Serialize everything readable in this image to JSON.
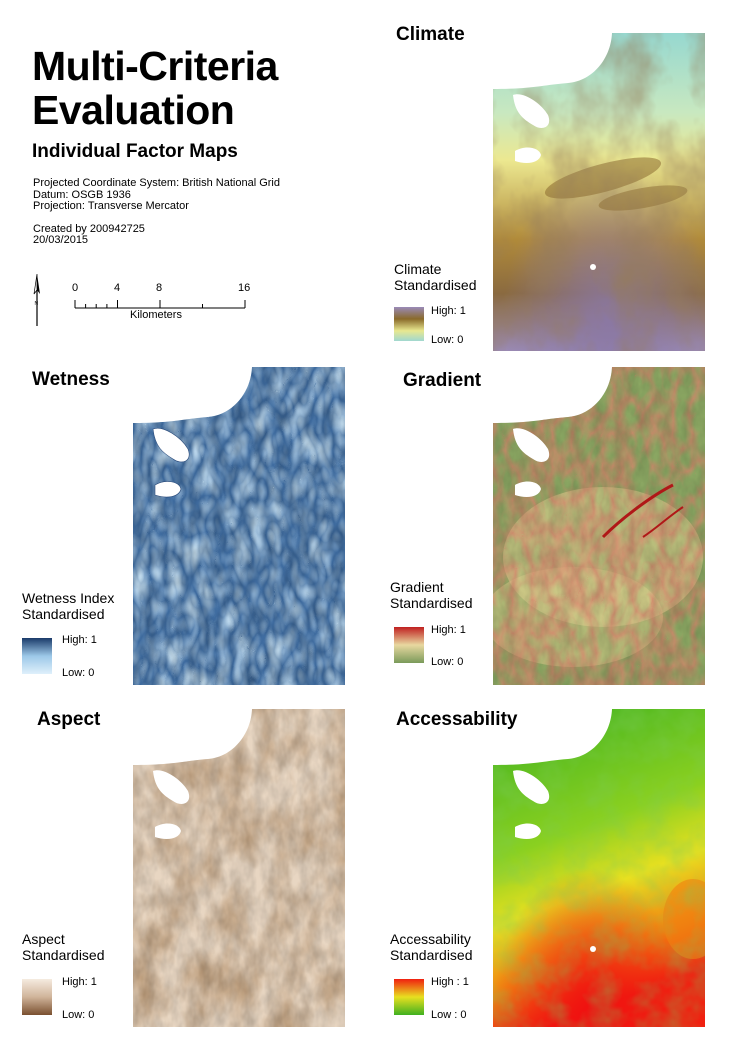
{
  "header": {
    "title_line1": "Multi-Criteria",
    "title_line2": "Evaluation",
    "subtitle": "Individual Factor Maps",
    "coord_system": "Projected Coordinate System: British National Grid",
    "datum": "Datum: OSGB 1936",
    "projection": "Projection: Transverse Mercator",
    "created_by": "Created by 200942725",
    "date": "20/03/2015"
  },
  "scalebar": {
    "ticks": [
      "0",
      "4",
      "8",
      "16"
    ],
    "unit": "Kilometers"
  },
  "panels": {
    "climate": {
      "title": "Climate",
      "legend_line1": "Climate",
      "legend_line2": "Standardised",
      "high": "High: 1",
      "low": "Low: 0",
      "colors": [
        "#a0d8d0",
        "#e8e890",
        "#8a6a2a",
        "#9a8ab8"
      ]
    },
    "wetness": {
      "title": "Wetness",
      "legend_line1": "Wetness Index",
      "legend_line2": "Standardised",
      "high": "High: 1",
      "low": "Low: 0",
      "colors": [
        "#dff0fb",
        "#9cc8e8",
        "#1a3a6a"
      ]
    },
    "gradient": {
      "title": "Gradient",
      "legend_line1": "Gradient",
      "legend_line2": "Standardised",
      "high": "High: 1",
      "low": "Low: 0",
      "colors": [
        "#7a9a5a",
        "#e8d8a0",
        "#c02020"
      ]
    },
    "aspect": {
      "title": "Aspect",
      "legend_line1": "Aspect",
      "legend_line2": "Standardised",
      "high": "High: 1",
      "low": "Low: 0",
      "colors": [
        "#f5ebe0",
        "#d0b49a",
        "#7a5030"
      ]
    },
    "accessability": {
      "title": "Accessability",
      "legend_line1": "Accessability",
      "legend_line2": "Standardised",
      "high": "High : 1",
      "low": "Low : 0",
      "colors": [
        "#40b020",
        "#e8e020",
        "#f02010"
      ]
    }
  }
}
